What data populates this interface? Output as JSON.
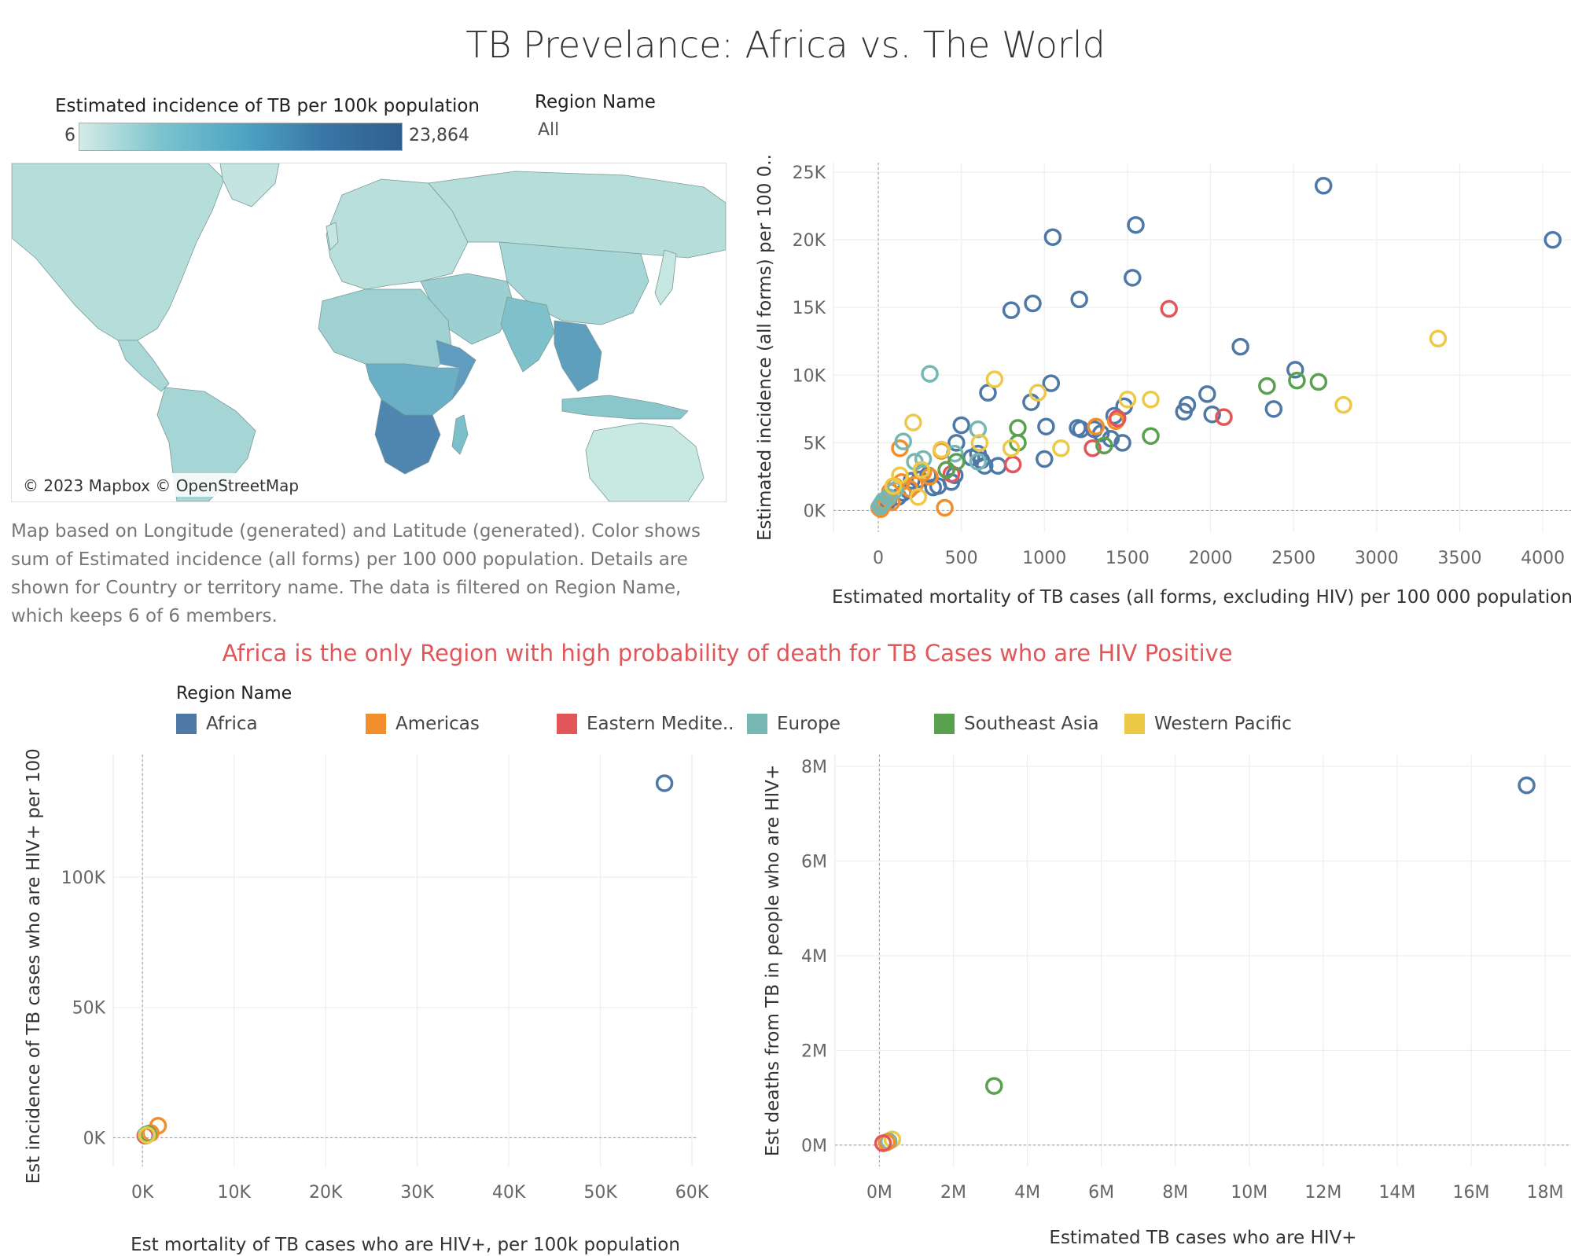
{
  "title": "TB Prevelance: Africa vs. The World",
  "map_legend": {
    "title": "Estimated incidence of TB per 100k population",
    "min_label": "6",
    "max_label": "23,864"
  },
  "filter": {
    "label": "Region Name",
    "value": "All"
  },
  "map": {
    "attribution": "© 2023 Mapbox © OpenStreetMap",
    "caption": "Map based on Longitude (generated) and Latitude (generated).  Color shows sum of Estimated incidence (all forms) per 100 000 population.  Details are shown for Country or territory name. The data is filtered on Region Name, which keeps 6 of 6 members."
  },
  "headline": "Africa is the only Region with high probability of death for TB Cases who are HIV Positive",
  "region_legend": {
    "title": "Region Name",
    "items": [
      {
        "label": "Africa",
        "color": "#4e79a7"
      },
      {
        "label": "Americas",
        "color": "#f28e2b"
      },
      {
        "label": "Eastern Medite..",
        "color": "#e15759"
      },
      {
        "label": "Europe",
        "color": "#76b7b2"
      },
      {
        "label": "Southeast Asia",
        "color": "#59a14f"
      },
      {
        "label": "Western Pacific",
        "color": "#edc948"
      }
    ]
  },
  "chart_data": [
    {
      "type": "scatter",
      "id": "chart1",
      "xlabel": "Estimated mortality of TB cases (all forms, excluding HIV) per 100 000 population",
      "ylabel": "Estimated incidence (all forms) per 100 0..",
      "xlim": [
        -270,
        4170
      ],
      "ylim": [
        -1600,
        25700
      ],
      "xticks": [
        0,
        500,
        1000,
        1500,
        2000,
        2500,
        3000,
        3500,
        4000
      ],
      "xtick_labels": [
        "0",
        "500",
        "1000",
        "1500",
        "2000",
        "2500",
        "3000",
        "3500",
        "4000"
      ],
      "yticks": [
        0,
        5000,
        10000,
        15000,
        20000,
        25000
      ],
      "ytick_labels": [
        "0K",
        "5K",
        "10K",
        "15K",
        "20K",
        "25K"
      ],
      "series": [
        {
          "name": "Africa",
          "points": [
            [
              2680,
              24000
            ],
            [
              1550,
              21100
            ],
            [
              1050,
              20200
            ],
            [
              4060,
              20000
            ],
            [
              1530,
              17200
            ],
            [
              930,
              15300
            ],
            [
              800,
              14800
            ],
            [
              1210,
              15600
            ],
            [
              2180,
              12100
            ],
            [
              2510,
              10400
            ],
            [
              1040,
              9400
            ],
            [
              660,
              8700
            ],
            [
              920,
              8000
            ],
            [
              1980,
              8600
            ],
            [
              1860,
              7800
            ],
            [
              1840,
              7300
            ],
            [
              2010,
              7100
            ],
            [
              2380,
              7500
            ],
            [
              1480,
              7700
            ],
            [
              1420,
              7000
            ],
            [
              500,
              6300
            ],
            [
              1010,
              6200
            ],
            [
              1220,
              6000
            ],
            [
              1200,
              6100
            ],
            [
              1300,
              6000
            ],
            [
              1340,
              5700
            ],
            [
              1400,
              5300
            ],
            [
              1470,
              5000
            ],
            [
              600,
              4200
            ],
            [
              560,
              3900
            ],
            [
              620,
              3700
            ],
            [
              640,
              3300
            ],
            [
              720,
              3300
            ],
            [
              470,
              5000
            ],
            [
              410,
              3000
            ],
            [
              300,
              2600
            ],
            [
              250,
              2300
            ],
            [
              200,
              2200
            ],
            [
              180,
              1500
            ],
            [
              150,
              1300
            ],
            [
              120,
              1000
            ],
            [
              60,
              700
            ],
            [
              40,
              500
            ],
            [
              20,
              300
            ],
            [
              440,
              2100
            ],
            [
              460,
              2600
            ],
            [
              360,
              1800
            ],
            [
              1000,
              3800
            ],
            [
              330,
              1700
            ]
          ]
        },
        {
          "name": "Americas",
          "points": [
            [
              130,
              4600
            ],
            [
              380,
              4400
            ],
            [
              400,
              200
            ],
            [
              270,
              2800
            ],
            [
              220,
              1900
            ],
            [
              140,
              2100
            ],
            [
              100,
              1800
            ],
            [
              70,
              1400
            ],
            [
              60,
              900
            ],
            [
              40,
              700
            ],
            [
              30,
              500
            ],
            [
              20,
              400
            ],
            [
              10,
              300
            ],
            [
              5,
              200
            ],
            [
              15,
              100
            ],
            [
              80,
              600
            ],
            [
              190,
              1600
            ],
            [
              1310,
              6200
            ],
            [
              1430,
              6600
            ],
            [
              310,
              2500
            ]
          ]
        },
        {
          "name": "Eastern Mediterranean",
          "points": [
            [
              1750,
              14900
            ],
            [
              2080,
              6900
            ],
            [
              1440,
              6800
            ],
            [
              1290,
              4600
            ],
            [
              810,
              3400
            ],
            [
              440,
              2700
            ]
          ]
        },
        {
          "name": "Europe",
          "points": [
            [
              310,
              10100
            ],
            [
              600,
              6000
            ],
            [
              150,
              5100
            ],
            [
              270,
              3800
            ],
            [
              220,
              3600
            ],
            [
              460,
              4200
            ],
            [
              600,
              3600
            ],
            [
              100,
              1500
            ],
            [
              60,
              1000
            ],
            [
              30,
              700
            ],
            [
              20,
              500
            ],
            [
              10,
              300
            ]
          ]
        },
        {
          "name": "Southeast Asia",
          "points": [
            [
              2340,
              9200
            ],
            [
              2520,
              9600
            ],
            [
              2650,
              9500
            ],
            [
              1640,
              5500
            ],
            [
              840,
              6100
            ],
            [
              840,
              5000
            ],
            [
              1360,
              4800
            ],
            [
              470,
              3600
            ],
            [
              410,
              3000
            ]
          ]
        },
        {
          "name": "Western Pacific",
          "points": [
            [
              3370,
              12700
            ],
            [
              2800,
              7800
            ],
            [
              700,
              9700
            ],
            [
              960,
              8700
            ],
            [
              1500,
              8200
            ],
            [
              1640,
              8200
            ],
            [
              210,
              6500
            ],
            [
              610,
              5000
            ],
            [
              1100,
              4600
            ],
            [
              800,
              4600
            ],
            [
              380,
              4500
            ],
            [
              260,
              3000
            ],
            [
              130,
              2600
            ],
            [
              90,
              1800
            ],
            [
              240,
              1000
            ]
          ]
        }
      ]
    },
    {
      "type": "scatter",
      "id": "chart2",
      "xlabel": "Est mortality of TB cases who are HIV+, per 100k population",
      "ylabel": "Est incidence of TB cases who are HIV+ per 100..",
      "xlim": [
        -3200,
        60600
      ],
      "ylim": [
        -11000,
        147000
      ],
      "xticks": [
        0,
        10000,
        20000,
        30000,
        40000,
        50000,
        60000
      ],
      "xtick_labels": [
        "0K",
        "10K",
        "20K",
        "30K",
        "40K",
        "50K",
        "60K"
      ],
      "yticks": [
        0,
        50000,
        100000
      ],
      "ytick_labels": [
        "0K",
        "50K",
        "100K"
      ],
      "series": [
        {
          "name": "Africa",
          "points": [
            [
              57000,
              136000
            ]
          ]
        },
        {
          "name": "Americas",
          "points": [
            [
              1700,
              4600
            ],
            [
              900,
              1800
            ]
          ]
        },
        {
          "name": "Eastern Mediterranean",
          "points": [
            [
              300,
              800
            ]
          ]
        },
        {
          "name": "Europe",
          "points": [
            [
              400,
              1200
            ]
          ]
        },
        {
          "name": "Southeast Asia",
          "points": [
            [
              600,
              1400
            ]
          ]
        },
        {
          "name": "Western Pacific",
          "points": [
            [
              500,
              1000
            ]
          ]
        }
      ]
    },
    {
      "type": "scatter",
      "id": "chart3",
      "xlabel": "Estimated TB cases who are HIV+",
      "ylabel": "Est deaths from TB in people who are HIV+",
      "xlim": [
        -1200000,
        18700000
      ],
      "ylim": [
        -450000,
        8250000
      ],
      "xticks": [
        0,
        2000000,
        4000000,
        6000000,
        8000000,
        10000000,
        12000000,
        14000000,
        16000000,
        18000000
      ],
      "xtick_labels": [
        "0M",
        "2M",
        "4M",
        "6M",
        "8M",
        "10M",
        "12M",
        "14M",
        "16M",
        "18M"
      ],
      "yticks": [
        0,
        2000000,
        4000000,
        6000000,
        8000000
      ],
      "ytick_labels": [
        "0M",
        "2M",
        "4M",
        "6M",
        "8M"
      ],
      "series": [
        {
          "name": "Africa",
          "points": [
            [
              17500000,
              7600000
            ]
          ]
        },
        {
          "name": "Southeast Asia",
          "points": [
            [
              3100000,
              1250000
            ]
          ]
        },
        {
          "name": "Western Pacific",
          "points": [
            [
              350000,
              120000
            ]
          ]
        },
        {
          "name": "Europe",
          "points": [
            [
              250000,
              80000
            ]
          ]
        },
        {
          "name": "Americas",
          "points": [
            [
              200000,
              60000
            ]
          ]
        },
        {
          "name": "Eastern Mediterranean",
          "points": [
            [
              100000,
              40000
            ]
          ]
        }
      ]
    }
  ]
}
